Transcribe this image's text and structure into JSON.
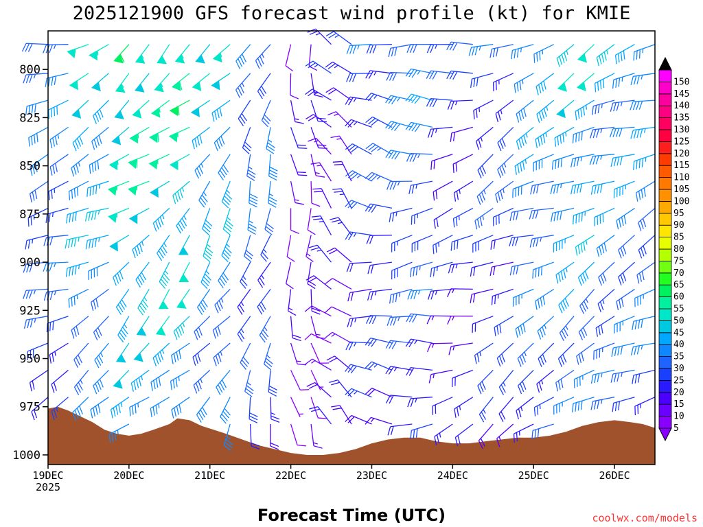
{
  "chart_data": {
    "type": "wind-barb-profile",
    "title": "2025121900 GFS forecast wind profile (kt) for KMIE",
    "xlabel": "Forecast Time (UTC)",
    "ylabel": "",
    "x_ticks": [
      "19DEC",
      "20DEC",
      "21DEC",
      "22DEC",
      "23DEC",
      "24DEC",
      "25DEC",
      "26DEC"
    ],
    "x_year": "2025",
    "x_range_days": [
      0,
      7.5
    ],
    "y_ticks": [
      800,
      825,
      850,
      875,
      900,
      925,
      950,
      975,
      1000
    ],
    "y_range_hpa": [
      780,
      1005
    ],
    "colorbar": {
      "levels": [
        5,
        10,
        15,
        20,
        25,
        30,
        35,
        40,
        45,
        50,
        55,
        60,
        65,
        70,
        75,
        80,
        85,
        90,
        95,
        100,
        105,
        110,
        115,
        120,
        125,
        130,
        135,
        140,
        145,
        150
      ],
      "colors": [
        "#8a00ff",
        "#6a00ff",
        "#4b00ff",
        "#2a1aff",
        "#1a40ff",
        "#1f64ff",
        "#0f88ff",
        "#00a8ff",
        "#00c8e0",
        "#00e6c8",
        "#00f0a0",
        "#00f060",
        "#20ff20",
        "#70ff10",
        "#b4ff00",
        "#e8ff00",
        "#ffe600",
        "#ffc800",
        "#ffaa00",
        "#ff9000",
        "#ff7800",
        "#ff5a00",
        "#ff3c00",
        "#ff1e1e",
        "#ff0040",
        "#ff0060",
        "#ff0080",
        "#ff00a0",
        "#ff00c8",
        "#ff00ff"
      ],
      "under_color": "#8a00ff",
      "over_color": "#000000"
    },
    "terrain": {
      "color": "#a0522d",
      "surface_pressure_hpa": [
        {
          "day": 0.0,
          "p": 976
        },
        {
          "day": 0.12,
          "p": 975
        },
        {
          "day": 0.25,
          "p": 977
        },
        {
          "day": 0.4,
          "p": 980
        },
        {
          "day": 0.55,
          "p": 983
        },
        {
          "day": 0.7,
          "p": 987
        },
        {
          "day": 0.85,
          "p": 989
        },
        {
          "day": 1.0,
          "p": 990
        },
        {
          "day": 1.15,
          "p": 989
        },
        {
          "day": 1.3,
          "p": 987
        },
        {
          "day": 1.5,
          "p": 984
        },
        {
          "day": 1.6,
          "p": 981
        },
        {
          "day": 1.75,
          "p": 982
        },
        {
          "day": 1.9,
          "p": 985
        },
        {
          "day": 2.05,
          "p": 987
        },
        {
          "day": 2.2,
          "p": 989
        },
        {
          "day": 2.4,
          "p": 992
        },
        {
          "day": 2.6,
          "p": 995
        },
        {
          "day": 2.8,
          "p": 997
        },
        {
          "day": 3.0,
          "p": 999
        },
        {
          "day": 3.2,
          "p": 1000
        },
        {
          "day": 3.4,
          "p": 1000
        },
        {
          "day": 3.6,
          "p": 999
        },
        {
          "day": 3.8,
          "p": 997
        },
        {
          "day": 4.0,
          "p": 994
        },
        {
          "day": 4.2,
          "p": 992
        },
        {
          "day": 4.4,
          "p": 991
        },
        {
          "day": 4.6,
          "p": 991
        },
        {
          "day": 4.8,
          "p": 993
        },
        {
          "day": 5.0,
          "p": 994
        },
        {
          "day": 5.2,
          "p": 994
        },
        {
          "day": 5.4,
          "p": 993
        },
        {
          "day": 5.6,
          "p": 992
        },
        {
          "day": 5.8,
          "p": 991
        },
        {
          "day": 6.0,
          "p": 991
        },
        {
          "day": 6.2,
          "p": 990
        },
        {
          "day": 6.4,
          "p": 988
        },
        {
          "day": 6.6,
          "p": 985
        },
        {
          "day": 6.8,
          "p": 983
        },
        {
          "day": 7.0,
          "p": 982
        },
        {
          "day": 7.2,
          "p": 983
        },
        {
          "day": 7.35,
          "p": 984
        },
        {
          "day": 7.5,
          "p": 986
        }
      ]
    },
    "barb_rows_hpa": [
      787,
      802,
      816,
      830,
      844,
      858,
      872,
      886,
      900,
      914,
      928,
      942,
      956,
      970,
      984,
      998
    ],
    "barb_time_step_h": 6,
    "wind_segments": [
      {
        "d0": 0.0,
        "d1": 0.45,
        "dir": 255,
        "spd": 35
      },
      {
        "d0": 0.5,
        "d1": 0.95,
        "dir": 245,
        "spd": 45
      },
      {
        "d0": 1.0,
        "d1": 1.45,
        "dir": 235,
        "spd": 55
      },
      {
        "d0": 1.5,
        "d1": 1.95,
        "dir": 230,
        "spd": 55
      },
      {
        "d0": 2.0,
        "d1": 2.45,
        "dir": 220,
        "spd": 45
      },
      {
        "d0": 2.5,
        "d1": 2.95,
        "dir": 205,
        "spd": 35
      },
      {
        "d0": 3.0,
        "d1": 3.45,
        "dir": 180,
        "spd": 15
      },
      {
        "d0": 3.5,
        "d1": 3.95,
        "dir": 320,
        "spd": 20
      },
      {
        "d0": 4.0,
        "d1": 4.45,
        "dir": 285,
        "spd": 30
      },
      {
        "d0": 4.5,
        "d1": 4.95,
        "dir": 270,
        "spd": 35
      },
      {
        "d0": 5.0,
        "d1": 5.45,
        "dir": 260,
        "spd": 25
      },
      {
        "d0": 5.5,
        "d1": 5.95,
        "dir": 245,
        "spd": 30
      },
      {
        "d0": 6.0,
        "d1": 6.45,
        "dir": 250,
        "spd": 40
      },
      {
        "d0": 6.5,
        "d1": 6.95,
        "dir": 245,
        "spd": 45
      },
      {
        "d0": 7.0,
        "d1": 7.5,
        "dir": 250,
        "spd": 40
      }
    ]
  },
  "credit": "coolwx.com/models"
}
